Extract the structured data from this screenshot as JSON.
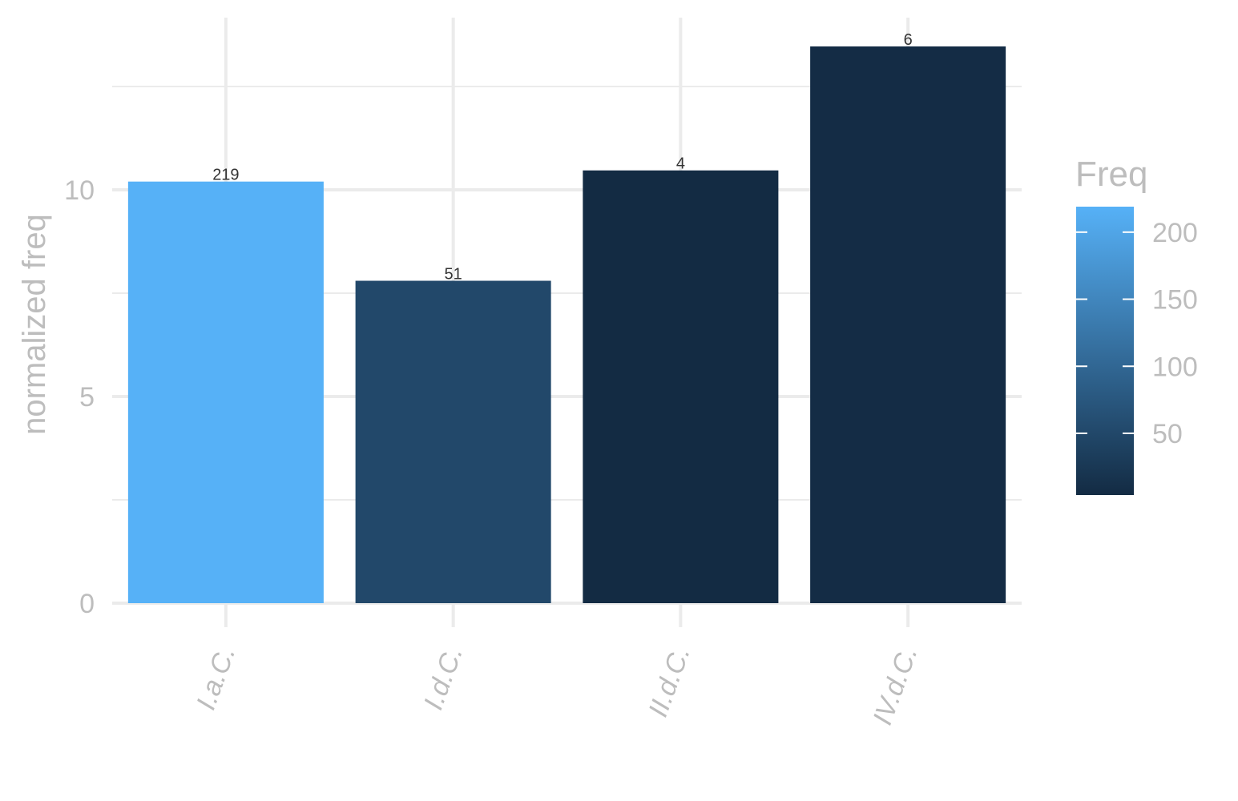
{
  "chart_data": {
    "type": "bar",
    "categories": [
      "I.a.C.",
      "I.d.C.",
      "II.d.C.",
      "IV.d.C."
    ],
    "values": [
      10.2,
      7.8,
      10.47,
      13.47
    ],
    "labels": [
      "219",
      "51",
      "4",
      "6"
    ],
    "freq": [
      219,
      51,
      4,
      6
    ],
    "xlabel": "",
    "ylabel": "normalized freq",
    "ylim": [
      0,
      14.1
    ],
    "yticks": [
      0,
      5,
      10
    ],
    "grid": true,
    "legend": {
      "title": "Freq",
      "position": "right",
      "breaks": [
        200,
        150,
        100,
        50
      ],
      "break_labels": [
        "200",
        "150",
        "100",
        "50"
      ],
      "range": [
        4,
        219
      ],
      "color_low": "#132b43",
      "color_high": "#56b1f7"
    }
  }
}
